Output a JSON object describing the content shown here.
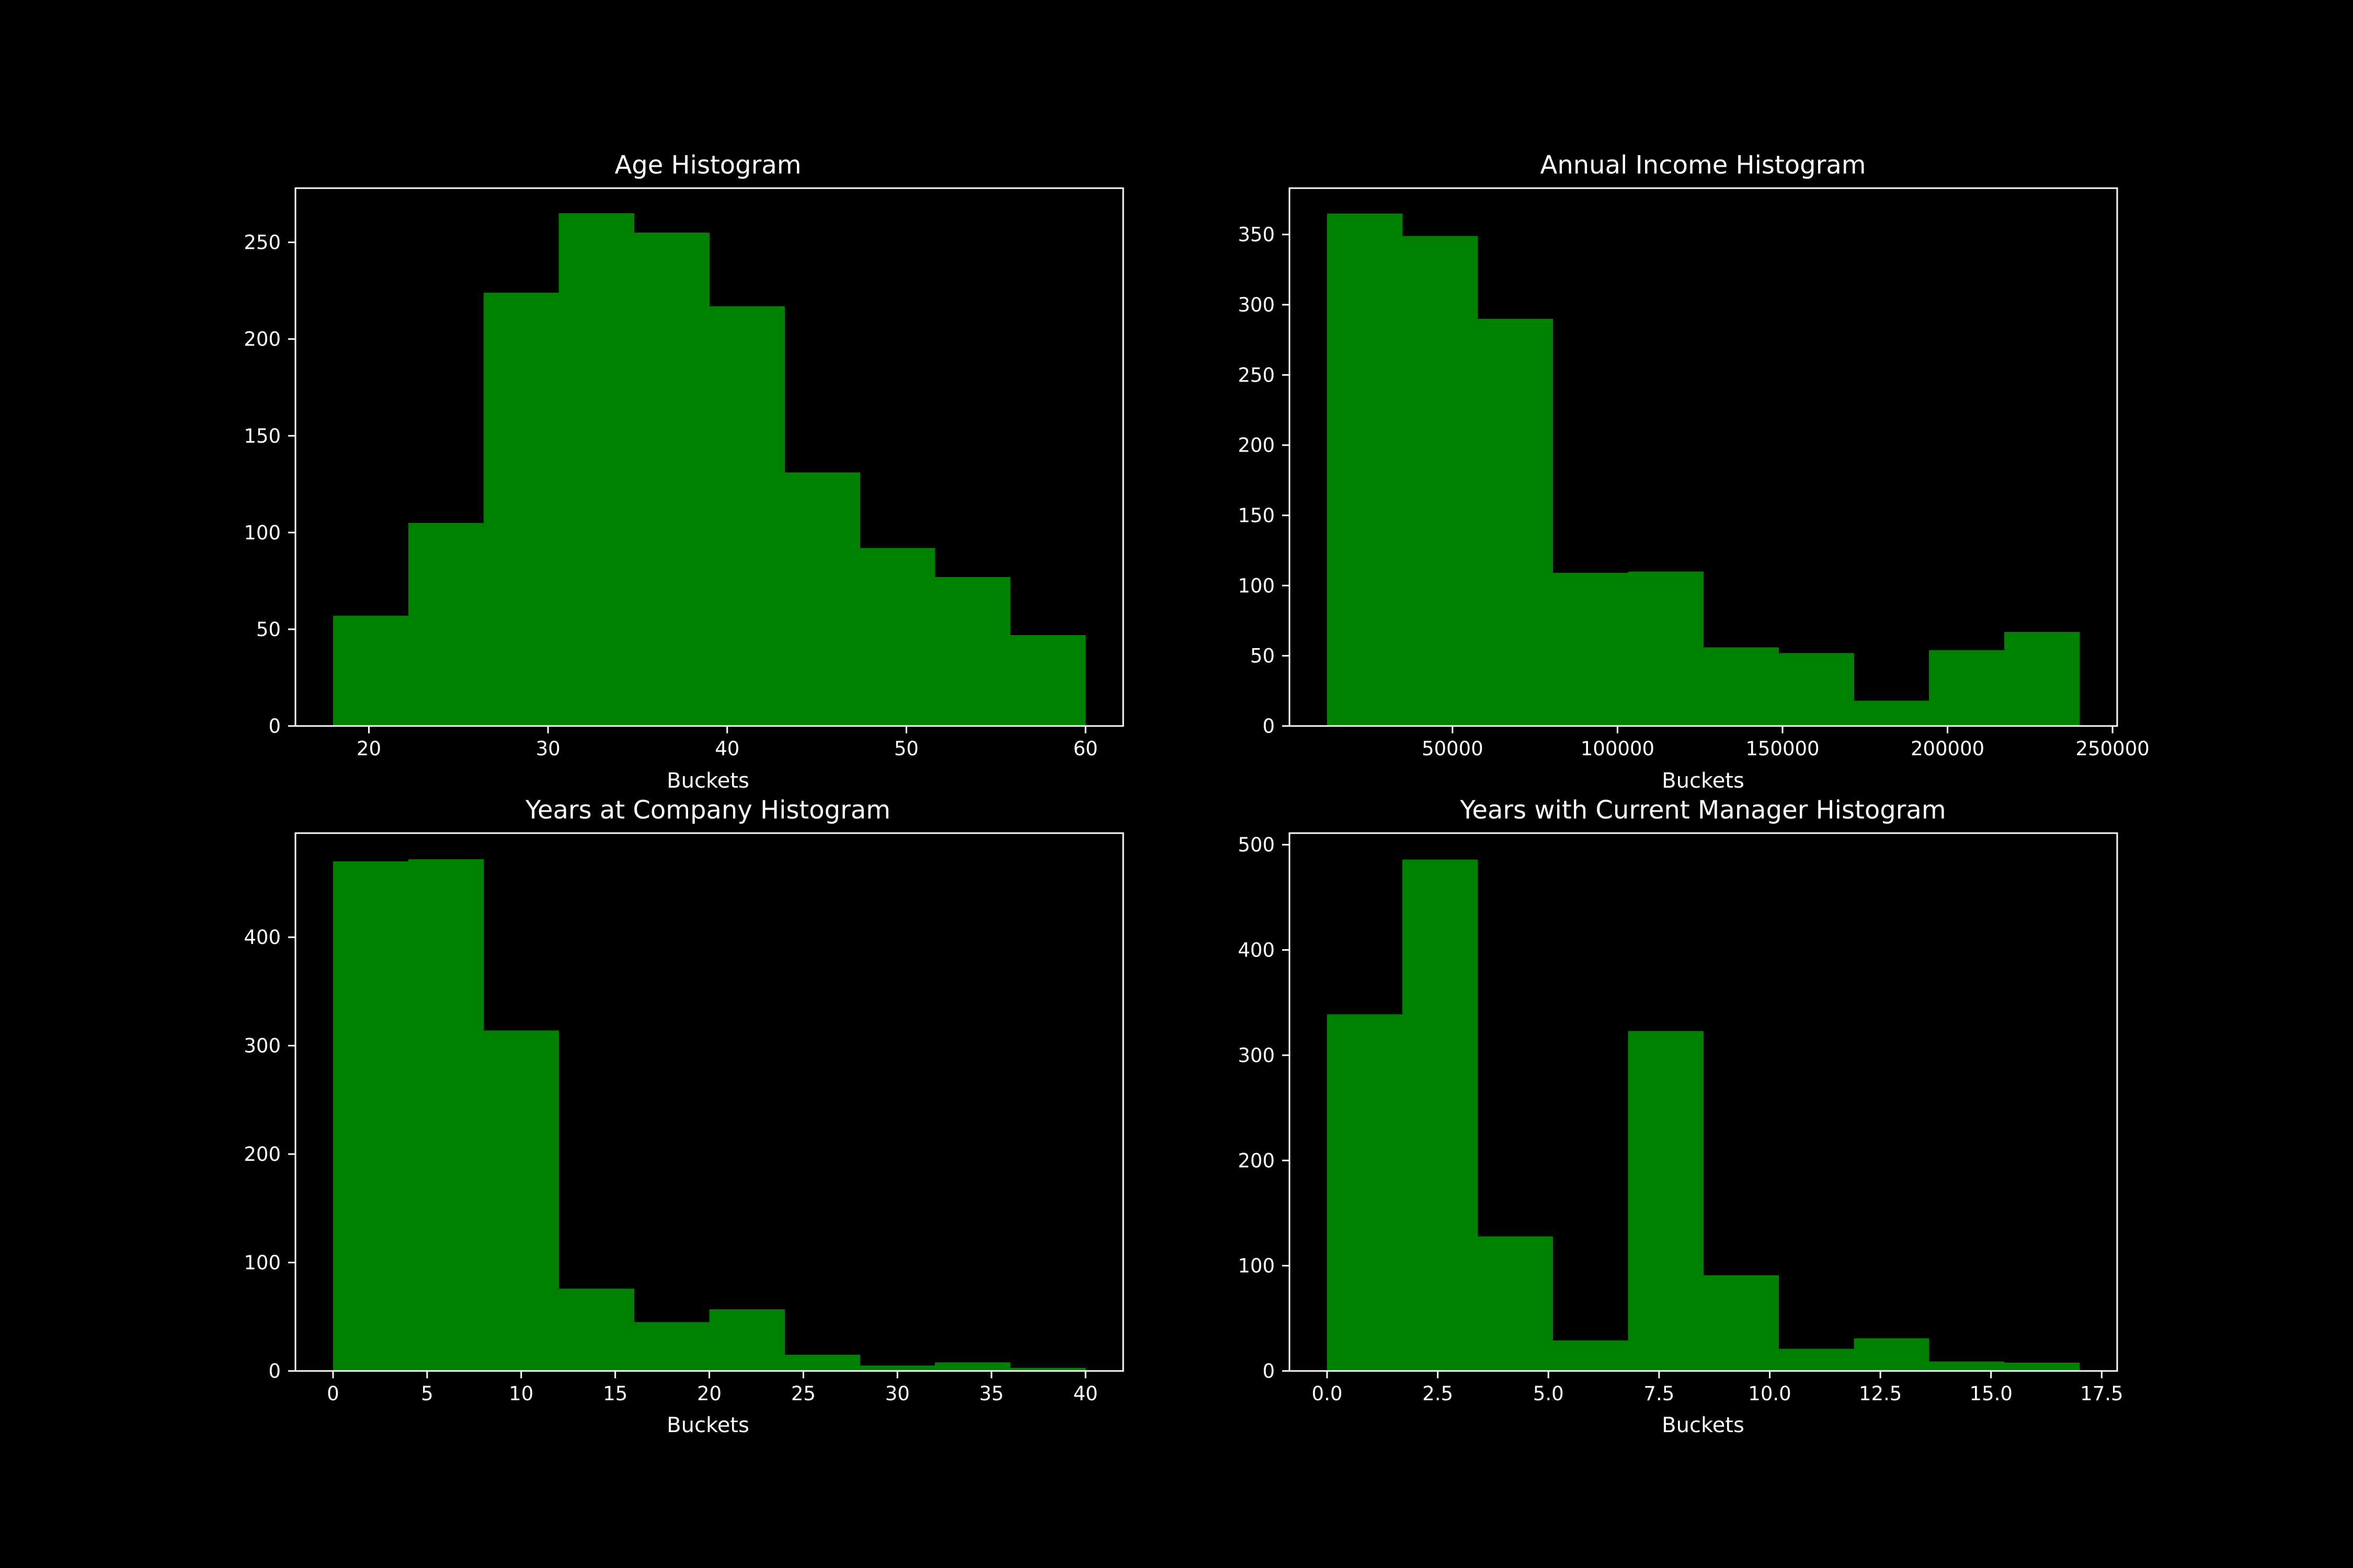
{
  "figure": {
    "background": "#000000",
    "bar_color": "#008000",
    "text_color": "#ffffff"
  },
  "chart_data": [
    {
      "type": "bar",
      "title": "Age Histogram",
      "xlabel": "Buckets",
      "ylabel": "",
      "bin_edges": [
        18,
        22.2,
        26.4,
        30.6,
        34.8,
        39,
        43.2,
        47.4,
        51.6,
        55.8,
        60
      ],
      "values": [
        57,
        105,
        224,
        265,
        255,
        217,
        131,
        92,
        77,
        47
      ],
      "xlim": [
        15.9,
        62.1
      ],
      "ylim": [
        0,
        278
      ],
      "xticks": [
        20,
        30,
        40,
        50,
        60
      ],
      "xtick_labels": [
        "20",
        "30",
        "40",
        "50",
        "60"
      ],
      "yticks": [
        0,
        50,
        100,
        150,
        200,
        250
      ],
      "ytick_labels": [
        "0",
        "50",
        "100",
        "150",
        "200",
        "250"
      ],
      "grid": false
    },
    {
      "type": "bar",
      "title": "Annual Income Histogram",
      "xlabel": "Buckets",
      "ylabel": "",
      "bin_edges": [
        12000,
        34800,
        57600,
        80400,
        103200,
        126000,
        148800,
        171600,
        194400,
        217200,
        240000
      ],
      "values": [
        365,
        349,
        290,
        109,
        110,
        56,
        52,
        18,
        54,
        67
      ],
      "xlim": [
        600,
        251400
      ],
      "ylim": [
        0,
        383
      ],
      "xticks": [
        50000,
        100000,
        150000,
        200000,
        250000
      ],
      "xtick_labels": [
        "50000",
        "100000",
        "150000",
        "200000",
        "250000"
      ],
      "yticks": [
        0,
        50,
        100,
        150,
        200,
        250,
        300,
        350
      ],
      "ytick_labels": [
        "0",
        "50",
        "100",
        "150",
        "200",
        "250",
        "300",
        "350"
      ],
      "grid": false
    },
    {
      "type": "bar",
      "title": "Years at Company Histogram",
      "xlabel": "Buckets",
      "ylabel": "",
      "bin_edges": [
        0,
        4,
        8,
        12,
        16,
        20,
        24,
        28,
        32,
        36,
        40
      ],
      "values": [
        470,
        472,
        314,
        76,
        45,
        57,
        15,
        5,
        8,
        3
      ],
      "xlim": [
        -2,
        42
      ],
      "ylim": [
        0,
        496
      ],
      "xticks": [
        0,
        5,
        10,
        15,
        20,
        25,
        30,
        35,
        40
      ],
      "xtick_labels": [
        "0",
        "5",
        "10",
        "15",
        "20",
        "25",
        "30",
        "35",
        "40"
      ],
      "yticks": [
        0,
        100,
        200,
        300,
        400
      ],
      "ytick_labels": [
        "0",
        "100",
        "200",
        "300",
        "400"
      ],
      "grid": false
    },
    {
      "type": "bar",
      "title": "Years with Current Manager Histogram",
      "xlabel": "Buckets",
      "ylabel": "",
      "bin_edges": [
        0,
        1.7,
        3.4,
        5.1,
        6.8,
        8.5,
        10.2,
        11.9,
        13.6,
        15.3,
        17
      ],
      "values": [
        339,
        486,
        128,
        29,
        323,
        91,
        21,
        31,
        9,
        8
      ],
      "xlim": [
        -0.85,
        17.85
      ],
      "ylim": [
        0,
        511
      ],
      "xticks": [
        0,
        2.5,
        5,
        7.5,
        10,
        12.5,
        15,
        17.5
      ],
      "xtick_labels": [
        "0.0",
        "2.5",
        "5.0",
        "7.5",
        "10.0",
        "12.5",
        "15.0",
        "17.5"
      ],
      "yticks": [
        0,
        100,
        200,
        300,
        400,
        500
      ],
      "ytick_labels": [
        "0",
        "100",
        "200",
        "300",
        "400",
        "500"
      ],
      "grid": false
    }
  ]
}
